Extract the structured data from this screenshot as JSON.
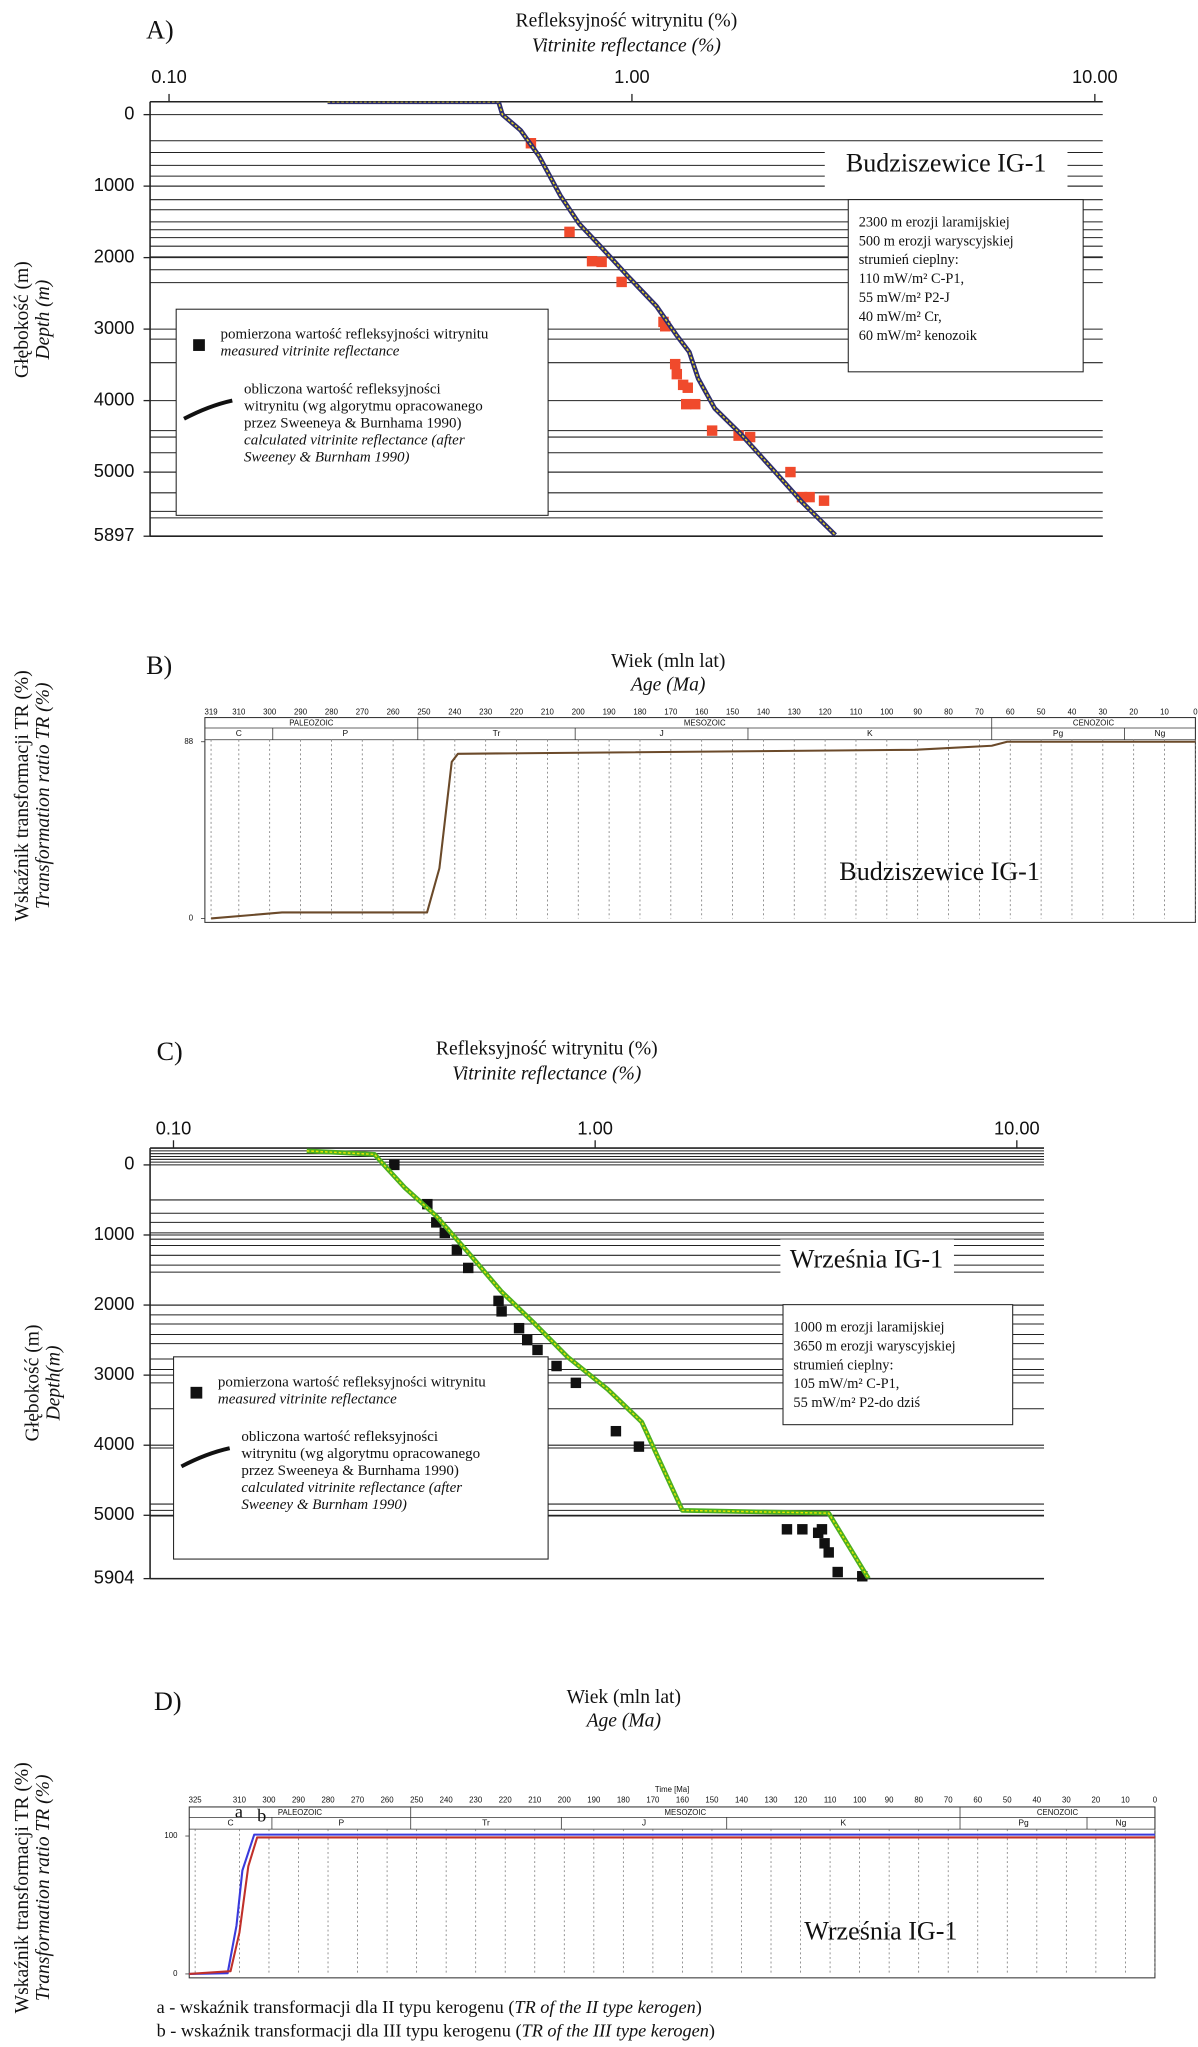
{
  "chart_data": [
    {
      "type": "scatter",
      "panel": "A)",
      "title": "Refleksyjność witrynitu (%)",
      "title_en": "Vitrinite reflectance (%)",
      "y_label": "Głębokość (m)",
      "y_label_en": "Depth (m)",
      "well": "Budziszewice IG-1",
      "x_log": true,
      "y_inverted": true,
      "xlim": [
        0.091,
        10.4
      ],
      "ylim": [
        -180,
        5897
      ],
      "xticks": [
        {
          "value": 0.1,
          "label": "0.10"
        },
        {
          "value": 1,
          "label": "1.00"
        },
        {
          "value": 10,
          "label": "10.00"
        }
      ],
      "yticks": [
        0,
        1000,
        2000,
        3000,
        4000,
        5000,
        5897
      ],
      "horizons": [
        365,
        530,
        710,
        860,
        1000,
        1190,
        1330,
        1500,
        1610,
        1720,
        1840,
        1990,
        2170,
        2350,
        3140,
        3470,
        4420,
        4510,
        4730,
        5000,
        5290,
        5550,
        5640
      ],
      "info": [
        "2300 m erozji laramijskiej",
        "500 m erozji waryscyjskiej",
        "strumień cieplny:",
        "110 mW/m² C-P1,",
        "55 mW/m² P2-J",
        "40 mW/m² Cr,",
        "60 mW/m² kenozoik"
      ],
      "series": [
        {
          "name": [
            "pomierzona wartość refleksyjności witrynitu"
          ],
          "name_en": [
            "measured vitrinite reflectance"
          ],
          "color": "#f04a2c",
          "marker": "square",
          "x": [
            0.605,
            0.733,
            0.82,
            0.86,
            0.95,
            1.17,
            1.18,
            1.24,
            1.25,
            1.29,
            1.32,
            1.31,
            1.37,
            1.49,
            1.7,
            1.8,
            2.2,
            2.33,
            2.42,
            2.6
          ],
          "values": [
            400,
            1640,
            2050,
            2060,
            2340,
            2900,
            2960,
            3490,
            3630,
            3780,
            3820,
            4050,
            4050,
            4420,
            4490,
            4510,
            5000,
            5350,
            5350,
            5400
          ]
        },
        {
          "name": [
            "obliczona wartość refleksyjności",
            "witrynitu (wg algorytmu opracowanego",
            "przez Sweeneya & Burnhama 1990)"
          ],
          "name_en": [
            "calculated vitrinite reflectance (after",
            "Sweeney & Burnham 1990)"
          ],
          "color": "#2e2e6e",
          "highlight": "#e8d820",
          "marker": "line",
          "x": [
            0.22,
            0.515,
            0.525,
            0.575,
            0.63,
            0.7,
            0.77,
            0.86,
            0.98,
            1.13,
            1.25,
            1.33,
            1.39,
            1.51,
            1.72,
            2.02,
            2.33,
            2.75
          ],
          "values": [
            -180,
            -180,
            0,
            220,
            580,
            1130,
            1530,
            1860,
            2260,
            2680,
            3090,
            3320,
            3690,
            4110,
            4470,
            4970,
            5420,
            5880
          ]
        }
      ]
    },
    {
      "type": "line",
      "panel": "B)",
      "title": "Wiek (mln lat)",
      "title_en": "Age (Ma)",
      "y_label": "Wskaźnik transformacji TR (%)",
      "y_label_en": "Transformation ratio TR (%)",
      "well": "Budziszewice IG-1",
      "xlim": [
        321,
        0
      ],
      "ylim": [
        0,
        89
      ],
      "xticks": [
        319,
        310,
        300,
        290,
        280,
        270,
        260,
        250,
        240,
        230,
        220,
        210,
        200,
        190,
        180,
        170,
        160,
        150,
        140,
        130,
        120,
        110,
        100,
        90,
        80,
        70,
        60,
        50,
        40,
        30,
        20,
        10,
        0
      ],
      "yticks": [
        0,
        88
      ],
      "grid": true,
      "eras": [
        {
          "name": "PALEOZOIC",
          "start": 321,
          "end": 252
        },
        {
          "name": "MESOZOIC",
          "start": 252,
          "end": 66
        },
        {
          "name": "CENOZOIC",
          "start": 66,
          "end": 0
        }
      ],
      "periods": [
        {
          "name": "C",
          "start": 321,
          "end": 299
        },
        {
          "name": "P",
          "start": 299,
          "end": 252
        },
        {
          "name": "Tr",
          "start": 252,
          "end": 201
        },
        {
          "name": "J",
          "start": 201,
          "end": 145
        },
        {
          "name": "K",
          "start": 145,
          "end": 66
        },
        {
          "name": "Pg",
          "start": 66,
          "end": 23
        },
        {
          "name": "Ng",
          "start": 23,
          "end": 0
        }
      ],
      "series": [
        {
          "color": "#6b4a2a",
          "x": [
            319,
            296,
            249,
            245,
            241,
            239,
            91,
            66,
            61,
            0
          ],
          "values": [
            0,
            3,
            3,
            25,
            78,
            82,
            84,
            86,
            88,
            88
          ]
        }
      ]
    },
    {
      "type": "scatter",
      "panel": "C)",
      "title": "Refleksyjność witrynitu (%)",
      "title_en": "Vitrinite reflectance (%)",
      "y_label": "Głębokość (m)",
      "y_label_en": "Depth(m)",
      "well": "Września IG-1",
      "x_log": true,
      "y_inverted": true,
      "xlim": [
        0.088,
        11.6
      ],
      "ylim": [
        -240,
        5904
      ],
      "xticks": [
        {
          "value": 0.1,
          "label": "0.10"
        },
        {
          "value": 1,
          "label": "1.00"
        },
        {
          "value": 10,
          "label": "10.00"
        }
      ],
      "yticks": [
        0,
        1000,
        2000,
        3000,
        4000,
        5000,
        5904
      ],
      "horizons": [
        -200,
        -160,
        -120,
        -80,
        -40,
        500,
        690,
        820,
        970,
        1060,
        1150,
        1290,
        1430,
        1530,
        2000,
        2140,
        2270,
        2420,
        2550,
        2770,
        2920,
        3110,
        3480,
        4040,
        4840,
        4930,
        5010
      ],
      "info": [
        "1000 m erozji laramijskiej",
        "3650 m erozji waryscyjskiej",
        "strumień cieplny:",
        "105 mW/m² C-P1,",
        "55 mW/m² P2-do dziś"
      ],
      "series": [
        {
          "name": [
            "pomierzona wartość refleksyjności witrynitu"
          ],
          "name_en": [
            "measured vitrinite reflectance"
          ],
          "color": "#111111",
          "marker": "square",
          "x": [
            0.334,
            0.4,
            0.42,
            0.44,
            0.47,
            0.5,
            0.59,
            0.6,
            0.66,
            0.69,
            0.73,
            0.81,
            0.9,
            1.12,
            1.27,
            2.85,
            3.1,
            3.38,
            3.45,
            3.5,
            3.58,
            3.76,
            4.3
          ],
          "values": [
            0,
            560,
            820,
            970,
            1210,
            1470,
            1940,
            2090,
            2330,
            2500,
            2640,
            2870,
            3110,
            3800,
            4020,
            5200,
            5200,
            5250,
            5200,
            5400,
            5530,
            5810,
            5870
          ]
        },
        {
          "name": [
            "obliczona wartość refleksyjności",
            "witrynitu (wg algorytmu opracowanego",
            "przez Sweeneya & Burnhama 1990)"
          ],
          "name_en": [
            "calculated vitrinite reflectance (after",
            "Sweeney & Burnham 1990)"
          ],
          "color": "#4caf20",
          "highlight": "#e8e800",
          "marker": "line",
          "x": [
            0.207,
            0.3,
            0.32,
            0.353,
            0.42,
            0.5,
            0.6,
            0.72,
            0.86,
            1.07,
            1.29,
            1.61,
            3.58,
            4.45
          ],
          "values": [
            -200,
            -150,
            40,
            320,
            730,
            1250,
            1810,
            2270,
            2740,
            3200,
            3670,
            4930,
            4970,
            5904
          ]
        }
      ]
    },
    {
      "type": "line",
      "panel": "D)",
      "title": "Wiek (mln lat)",
      "title_en": "Age (Ma)",
      "x_label": "Time [Ma]",
      "y_label": "Wskaźnik transformacji TR (%)",
      "y_label_en": "Transformation ratio TR (%)",
      "well": "Września IG-1",
      "xlim": [
        327,
        0
      ],
      "ylim": [
        0,
        105
      ],
      "xticks": [
        325,
        310,
        300,
        290,
        280,
        270,
        260,
        250,
        240,
        230,
        220,
        210,
        200,
        190,
        180,
        170,
        160,
        150,
        140,
        130,
        120,
        110,
        100,
        90,
        80,
        70,
        60,
        50,
        40,
        30,
        20,
        10,
        0
      ],
      "yticks": [
        0,
        100
      ],
      "grid": true,
      "eras": [
        {
          "name": "PALEOZOIC",
          "start": 327,
          "end": 252
        },
        {
          "name": "MESOZOIC",
          "start": 252,
          "end": 66
        },
        {
          "name": "CENOZOIC",
          "start": 66,
          "end": 0
        }
      ],
      "periods": [
        {
          "name": "C",
          "start": 327,
          "end": 299
        },
        {
          "name": "P",
          "start": 299,
          "end": 252
        },
        {
          "name": "Tr",
          "start": 252,
          "end": 201
        },
        {
          "name": "J",
          "start": 201,
          "end": 145
        },
        {
          "name": "K",
          "start": 145,
          "end": 66
        },
        {
          "name": "Pg",
          "start": 66,
          "end": 23
        },
        {
          "name": "Ng",
          "start": 23,
          "end": 0
        }
      ],
      "series": [
        {
          "name": "a",
          "color": "#3a3adc",
          "x": [
            327,
            314,
            311,
            309,
            305,
            0
          ],
          "values": [
            0,
            0.5,
            35,
            75,
            101,
            101
          ]
        },
        {
          "name": "b",
          "color": "#c0302a",
          "x": [
            327,
            313,
            310,
            307,
            304,
            0
          ],
          "values": [
            0,
            2,
            30,
            78,
            99,
            99
          ]
        }
      ],
      "footnotes": [
        {
          "text": "a - wskaźnik transformacji dla II typu kerogenu (",
          "italic": "TR of the II type kerogen",
          "end": ")"
        },
        {
          "text": "b - wskaźnik transformacji dla III typu kerogenu (",
          "italic": "TR of the III type kerogen",
          "end": ")"
        }
      ]
    }
  ]
}
